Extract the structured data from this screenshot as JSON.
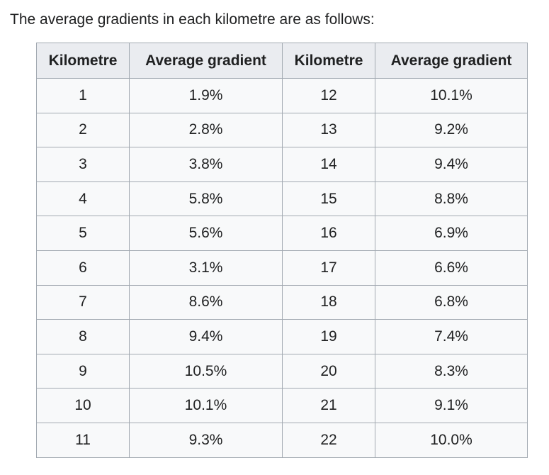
{
  "intro": "The average gradients in each kilometre are as follows:",
  "table": {
    "headers": [
      "Kilometre",
      "Average gradient",
      "Kilometre",
      "Average gradient"
    ],
    "rows": [
      [
        "1",
        "1.9%",
        "12",
        "10.1%"
      ],
      [
        "2",
        "2.8%",
        "13",
        "9.2%"
      ],
      [
        "3",
        "3.8%",
        "14",
        "9.4%"
      ],
      [
        "4",
        "5.8%",
        "15",
        "8.8%"
      ],
      [
        "5",
        "5.6%",
        "16",
        "6.9%"
      ],
      [
        "6",
        "3.1%",
        "17",
        "6.6%"
      ],
      [
        "7",
        "8.6%",
        "18",
        "6.8%"
      ],
      [
        "8",
        "9.4%",
        "19",
        "7.4%"
      ],
      [
        "9",
        "10.5%",
        "20",
        "8.3%"
      ],
      [
        "10",
        "10.1%",
        "21",
        "9.1%"
      ],
      [
        "11",
        "9.3%",
        "22",
        "10.0%"
      ]
    ]
  }
}
